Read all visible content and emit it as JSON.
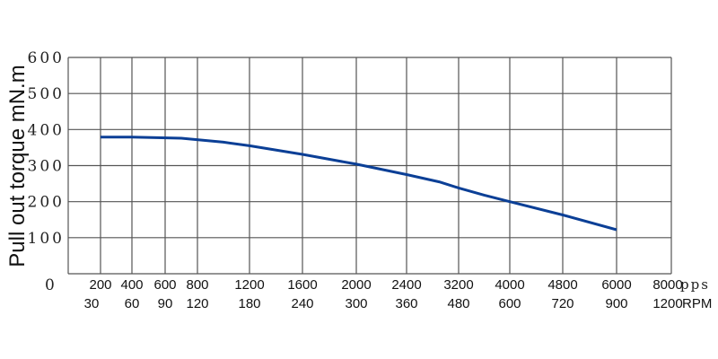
{
  "chart_data": {
    "type": "line",
    "title": "",
    "ylabel": "Pull out torque mN.m",
    "xlabel_units": [
      "pps",
      "RPM"
    ],
    "ylim": [
      0,
      600
    ],
    "yticks": [
      "0",
      "100",
      "200",
      "300",
      "400",
      "500",
      "600"
    ],
    "xticks_pps": [
      "200",
      "400",
      "600",
      "800",
      "1200",
      "1600",
      "2000",
      "2400",
      "3200",
      "4000",
      "4800",
      "6000",
      "8000"
    ],
    "xticks_rpm": [
      "30",
      "60",
      "90",
      "120",
      "180",
      "240",
      "300",
      "360",
      "480",
      "600",
      "720",
      "900",
      "1200"
    ],
    "xscale": "non-uniform (tick positions unevenly spaced)",
    "grid": true,
    "line_color": "#0b3f96",
    "series": [
      {
        "x": [
          200,
          400,
          700,
          1000,
          1200,
          1600,
          2000,
          2400,
          2900,
          3200,
          3600,
          4000,
          4800,
          6000
        ],
        "y": [
          379,
          379,
          376,
          365,
          355,
          331,
          304,
          275,
          255,
          238,
          218,
          200,
          163,
          122
        ]
      }
    ]
  }
}
